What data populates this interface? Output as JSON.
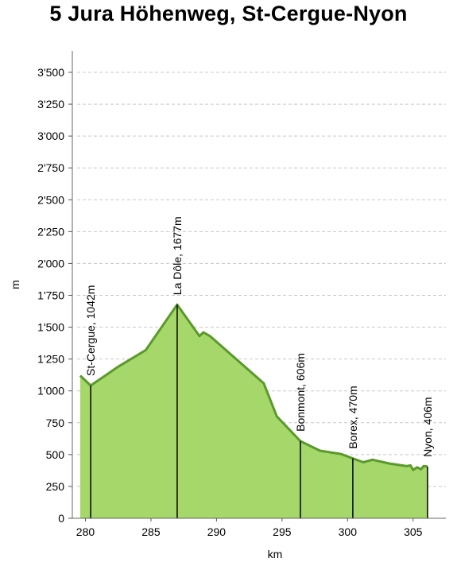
{
  "title": "5 Jura Höhenweg, St-Cergue-Nyon",
  "chart_data": {
    "type": "area",
    "title": "5 Jura Höhenweg, St-Cergue-Nyon",
    "xlabel": "km",
    "ylabel": "m",
    "xlim": [
      279,
      307.5
    ],
    "ylim": [
      0,
      3500
    ],
    "grid": true,
    "x_ticks": [
      {
        "value": 280,
        "label": "280"
      },
      {
        "value": 285,
        "label": "285"
      },
      {
        "value": 290,
        "label": "290"
      },
      {
        "value": 295,
        "label": "295"
      },
      {
        "value": 300,
        "label": "300"
      },
      {
        "value": 305,
        "label": "305"
      }
    ],
    "y_ticks": [
      {
        "value": 0,
        "label": "0"
      },
      {
        "value": 250,
        "label": "250"
      },
      {
        "value": 500,
        "label": "500"
      },
      {
        "value": 750,
        "label": "750"
      },
      {
        "value": 1000,
        "label": "1'000"
      },
      {
        "value": 1250,
        "label": "1'250"
      },
      {
        "value": 1500,
        "label": "1'500"
      },
      {
        "value": 1750,
        "label": "1'750"
      },
      {
        "value": 2000,
        "label": "2'000"
      },
      {
        "value": 2250,
        "label": "2'250"
      },
      {
        "value": 2500,
        "label": "2'500"
      },
      {
        "value": 2750,
        "label": "2'750"
      },
      {
        "value": 3000,
        "label": "3'000"
      },
      {
        "value": 3250,
        "label": "3'250"
      },
      {
        "value": 3500,
        "label": "3'500"
      }
    ],
    "profile": {
      "x": [
        279.6,
        280.4,
        282.5,
        284.6,
        287.0,
        288.7,
        289.0,
        289.5,
        293.6,
        294.6,
        296.4,
        297.9,
        299.5,
        300.4,
        301.2,
        301.9,
        303.2,
        304.5,
        304.8,
        305.0,
        305.3,
        305.6,
        305.8,
        306.1
      ],
      "y": [
        1120,
        1042,
        1190,
        1320,
        1677,
        1430,
        1460,
        1430,
        1060,
        800,
        606,
        530,
        505,
        470,
        440,
        460,
        430,
        410,
        415,
        380,
        400,
        385,
        410,
        406
      ]
    },
    "fill_color": "#a6d76a",
    "line_color": "#5a9a2a",
    "stops": [
      {
        "km": 280.4,
        "elevation": 1042,
        "label": "St-Cergue, 1042m"
      },
      {
        "km": 287.0,
        "elevation": 1677,
        "label": "La Dôle, 1677m"
      },
      {
        "km": 296.4,
        "elevation": 606,
        "label": "Bonmont, 606m"
      },
      {
        "km": 300.4,
        "elevation": 470,
        "label": "Borex, 470m"
      },
      {
        "km": 306.1,
        "elevation": 406,
        "label": "Nyon, 406m"
      }
    ]
  }
}
